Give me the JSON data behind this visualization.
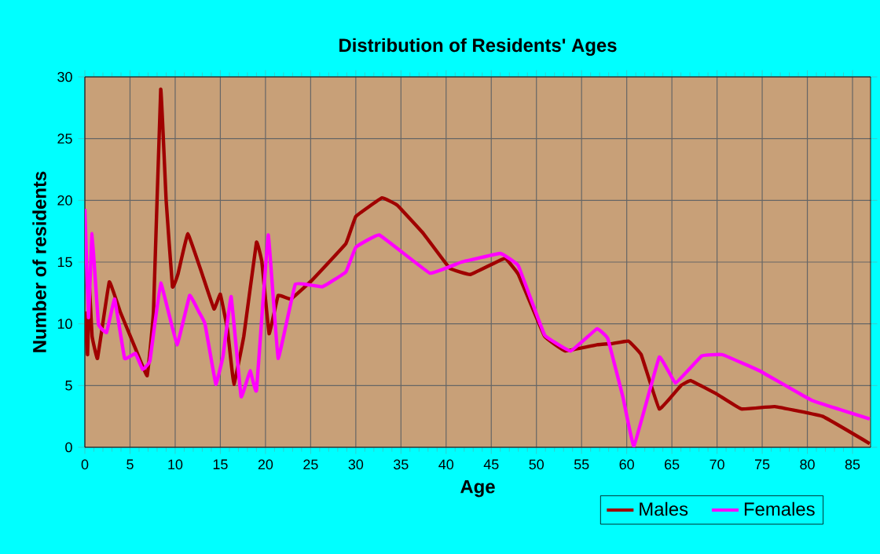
{
  "chart_data": {
    "type": "line",
    "title": "Distribution of Residents' Ages",
    "xlabel": "Age",
    "ylabel": "Number of residents",
    "xlim": [
      0,
      87
    ],
    "ylim": [
      0,
      30
    ],
    "xticks": [
      0,
      5,
      10,
      15,
      20,
      25,
      30,
      35,
      40,
      45,
      50,
      55,
      60,
      65,
      70,
      75,
      80,
      85
    ],
    "yticks": [
      0,
      5,
      10,
      15,
      20,
      25,
      30
    ],
    "grid": true,
    "legend": "bottom right",
    "marker": "none",
    "line_style": "solid",
    "series": [
      {
        "name": "Males",
        "color": "#a00000",
        "x": [
          0,
          0.3,
          0.5,
          0.8,
          1.4,
          2.7,
          3.9,
          5.6,
          6.9,
          7.6,
          8.4,
          9,
          9.7,
          10.3,
          11.4,
          13,
          14.3,
          15,
          15.8,
          16.5,
          17.6,
          19,
          19.6,
          20.4,
          21.4,
          22.8,
          25.1,
          28.9,
          30,
          32.9,
          34.6,
          37.5,
          40.4,
          42.7,
          46.5,
          48,
          50.9,
          53.2,
          56.7,
          58.4,
          60.2,
          61.6,
          63.6,
          66,
          67.1,
          70,
          72.7,
          76.4,
          81.7,
          86.9
        ],
        "values": [
          11,
          7.5,
          13,
          9,
          7.2,
          13.4,
          11,
          8,
          5.8,
          11,
          29,
          20,
          13,
          14,
          17.3,
          14,
          11.2,
          12.4,
          9.5,
          5.1,
          9,
          16.6,
          15,
          9.2,
          12.3,
          12,
          13.5,
          16.5,
          18.7,
          20.2,
          19.6,
          17.3,
          14.5,
          14,
          15.3,
          14,
          9,
          7.8,
          8.3,
          8.4,
          8.6,
          7.5,
          3.1,
          5,
          5.4,
          4.3,
          3.1,
          3.3,
          2.5,
          0.3
        ]
      },
      {
        "name": "Females",
        "color": "#ff00ff",
        "x": [
          0,
          0.4,
          0.8,
          1.5,
          2.4,
          3.3,
          4.4,
          5.6,
          6.4,
          7.2,
          8.4,
          10.2,
          11.6,
          12.6,
          13.3,
          14.5,
          15.3,
          16.2,
          17.3,
          18.3,
          19,
          20.3,
          21.4,
          23.3,
          26.3,
          28.9,
          30,
          32.6,
          38.2,
          41.7,
          46,
          48,
          50.9,
          53.8,
          56.7,
          57.9,
          59.6,
          60.8,
          63.6,
          65.4,
          68.3,
          70.6,
          74.7,
          80.5,
          86.9
        ],
        "values": [
          19.3,
          10.5,
          17.3,
          10,
          9.3,
          12,
          7.2,
          7.6,
          6.3,
          7,
          13.3,
          8.3,
          12.3,
          11,
          10,
          5.1,
          7.4,
          12.2,
          4.1,
          6.2,
          4.6,
          17.2,
          7.2,
          13.2,
          13,
          14.2,
          16.2,
          17.2,
          14.1,
          15,
          15.7,
          14.7,
          9.1,
          7.8,
          9.6,
          8.8,
          4,
          0.1,
          7.3,
          5.2,
          7.4,
          7.5,
          6.2,
          3.8,
          2.3
        ]
      }
    ]
  }
}
